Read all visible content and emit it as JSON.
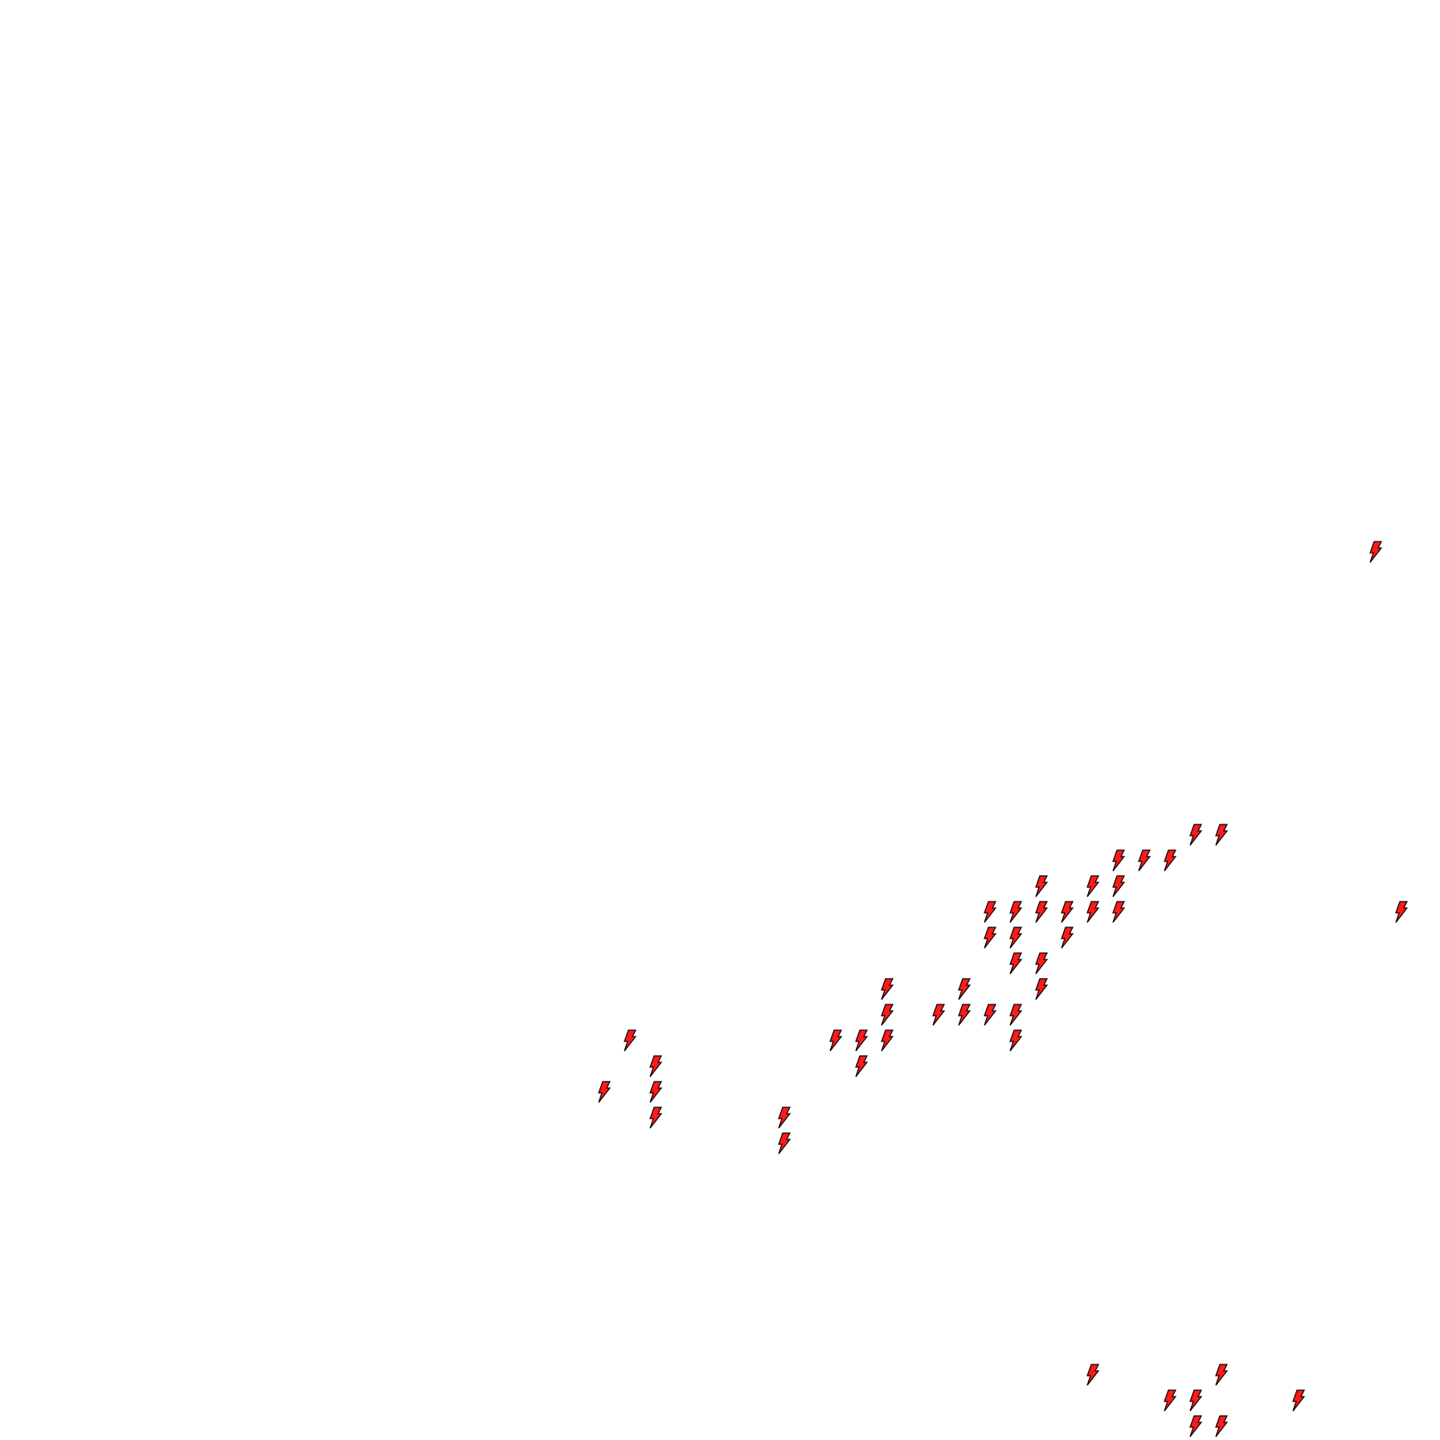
{
  "map": {
    "background_color": "#ffffff",
    "marker_icon": "lightning-bolt-icon",
    "marker_fill_color": "#ff1a1a",
    "marker_stroke_color": "#000000"
  }
}
